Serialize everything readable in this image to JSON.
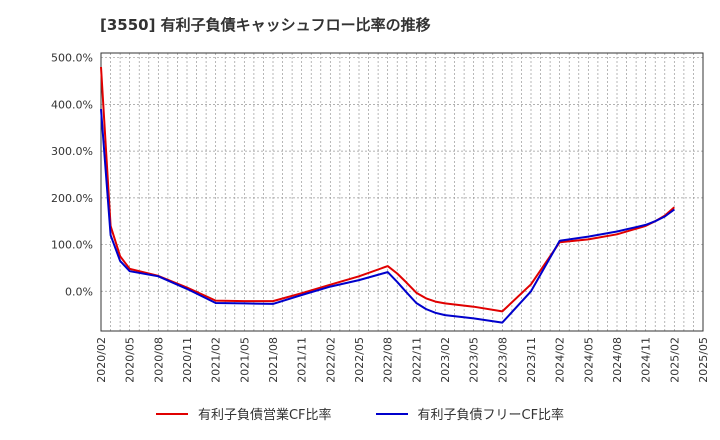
{
  "title": "[3550]  有利子負債キャッシュフロー比率の推移",
  "colors": {
    "series_red": "#e00000",
    "series_blue": "#0000cc",
    "grid": "#999999",
    "axis": "#333333"
  },
  "chart_data": {
    "type": "line",
    "title": "[3550]  有利子負債キャッシュフロー比率の推移",
    "xlabel": "",
    "ylabel": "",
    "ylim": [
      -85,
      510
    ],
    "yticks": [
      0,
      100,
      200,
      300,
      400,
      500
    ],
    "ytick_labels": [
      "0.0%",
      "100.0%",
      "200.0%",
      "300.0%",
      "400.0%",
      "500.0%"
    ],
    "xticks": [
      "2020/02",
      "2020/05",
      "2020/08",
      "2020/11",
      "2021/02",
      "2021/05",
      "2021/08",
      "2021/11",
      "2022/02",
      "2022/05",
      "2022/08",
      "2022/11",
      "2023/02",
      "2023/05",
      "2023/08",
      "2023/11",
      "2024/02",
      "2024/05",
      "2024/08",
      "2024/11",
      "2025/02",
      "2025/05"
    ],
    "grid": true,
    "legend_position": "bottom",
    "x": [
      "2020/02",
      "2020/03",
      "2020/04",
      "2020/05",
      "2020/08",
      "2020/11",
      "2021/02",
      "2021/05",
      "2021/08",
      "2021/11",
      "2022/02",
      "2022/05",
      "2022/08",
      "2022/09",
      "2022/10",
      "2022/11",
      "2022/12",
      "2023/01",
      "2023/02",
      "2023/05",
      "2023/08",
      "2023/11",
      "2024/02",
      "2024/05",
      "2024/08",
      "2024/11",
      "2024/12",
      "2025/01",
      "2025/02"
    ],
    "series": [
      {
        "name": "有利子負債営業CF比率",
        "color": "#e00000",
        "values": [
          480,
          140,
          75,
          48,
          33,
          8,
          -20,
          -21,
          -21,
          -4,
          14,
          32,
          54,
          38,
          18,
          -3,
          -15,
          -22,
          -26,
          -33,
          -43,
          15,
          105,
          111,
          122,
          140,
          150,
          162,
          180
        ]
      },
      {
        "name": "有利子負債フリーCF比率",
        "color": "#0000cc",
        "values": [
          390,
          120,
          65,
          43,
          32,
          5,
          -25,
          -26,
          -27,
          -8,
          10,
          24,
          41,
          20,
          -3,
          -25,
          -38,
          -46,
          -51,
          -58,
          -67,
          0,
          108,
          117,
          128,
          142,
          150,
          160,
          175
        ]
      }
    ]
  }
}
